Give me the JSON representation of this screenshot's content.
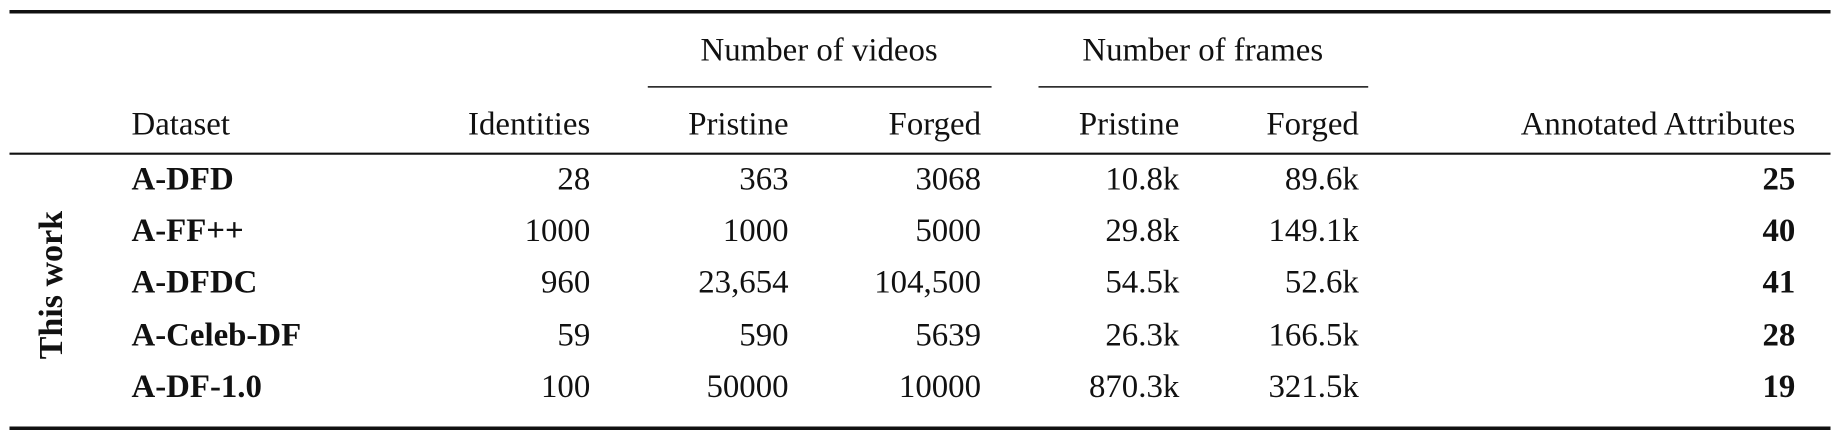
{
  "table": {
    "group_headers": [
      "Number of videos",
      "Number of frames"
    ],
    "columns": [
      "Dataset",
      "Identities",
      "Pristine",
      "Forged",
      "Pristine",
      "Forged",
      "Annotated Attributes"
    ],
    "side_label": "This work",
    "rows": [
      [
        "A-DFD",
        "28",
        "363",
        "3068",
        "10.8k",
        "89.6k",
        "25"
      ],
      [
        "A-FF++",
        "1000",
        "1000",
        "5000",
        "29.8k",
        "149.1k",
        "40"
      ],
      [
        "A-DFDC",
        "960",
        "23,654",
        "104,500",
        "54.5k",
        "52.6k",
        "41"
      ],
      [
        "A-Celeb-DF",
        "59",
        "590",
        "5639",
        "26.3k",
        "166.5k",
        "28"
      ],
      [
        "A-DF-1.0",
        "100",
        "50000",
        "10000",
        "870.3k",
        "321.5k",
        "19"
      ]
    ]
  }
}
